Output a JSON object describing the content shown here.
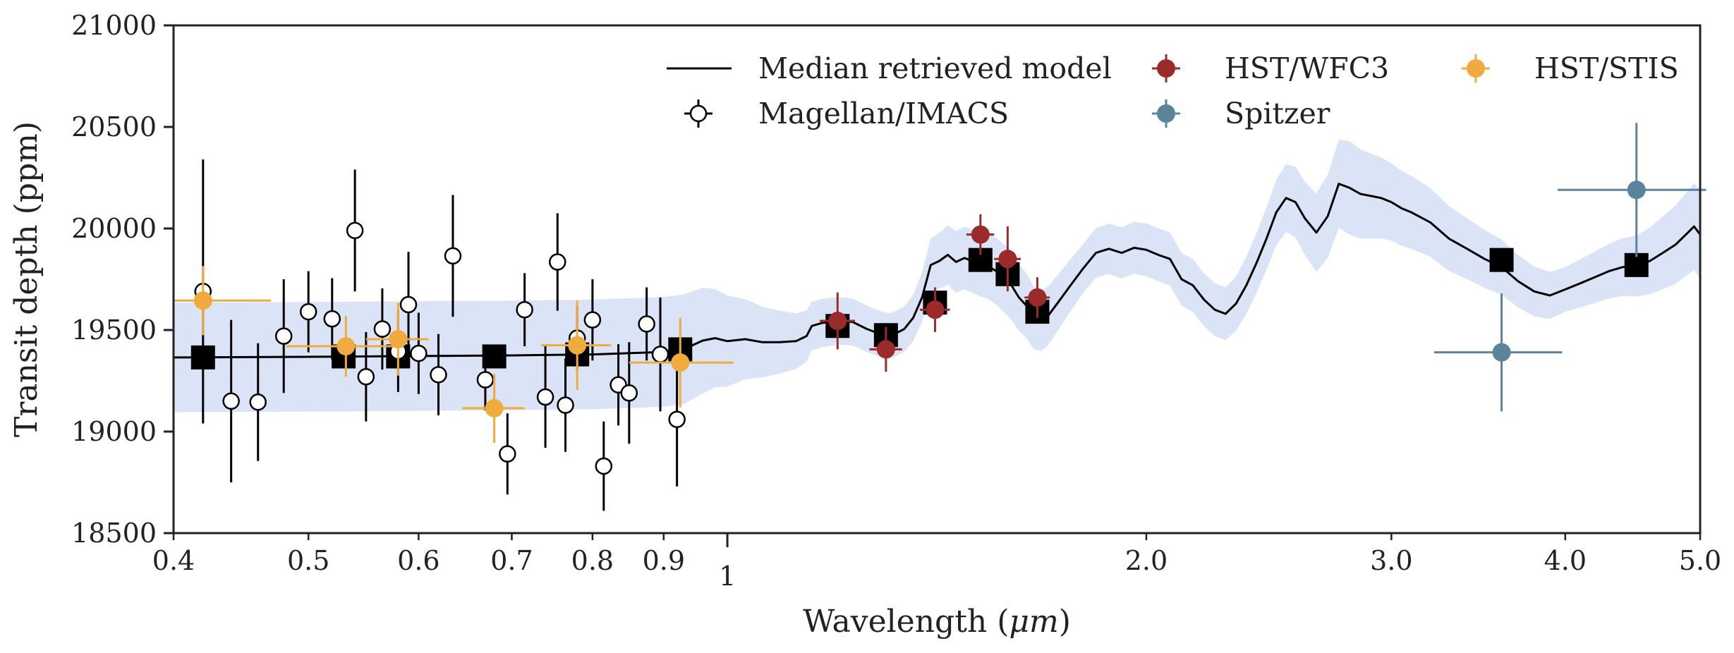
{
  "chart_data": {
    "type": "scatter",
    "title": "",
    "xlabel_prefix": "Wavelength (",
    "xlabel_unit": "μm",
    "xlabel_suffix": ")",
    "ylabel": "Transit depth (ppm)",
    "x_scale": "log",
    "xlim": [
      0.4,
      5.0
    ],
    "ylim": [
      18500,
      21000
    ],
    "x_ticks": [
      {
        "value": 0.4,
        "label": "0.4",
        "major": false
      },
      {
        "value": 0.5,
        "label": "0.5",
        "major": false
      },
      {
        "value": 0.6,
        "label": "0.6",
        "major": false
      },
      {
        "value": 0.7,
        "label": "0.7",
        "major": false
      },
      {
        "value": 0.8,
        "label": "0.8",
        "major": false
      },
      {
        "value": 0.9,
        "label": "0.9",
        "major": false
      },
      {
        "value": 1.0,
        "label": "1",
        "major": true
      },
      {
        "value": 2.0,
        "label": "2.0",
        "major": false
      },
      {
        "value": 3.0,
        "label": "3.0",
        "major": false
      },
      {
        "value": 4.0,
        "label": "4.0",
        "major": false
      },
      {
        "value": 5.0,
        "label": "5.0",
        "major": false
      }
    ],
    "y_ticks": [
      {
        "value": 18500,
        "label": "18500"
      },
      {
        "value": 19000,
        "label": "19000"
      },
      {
        "value": 19500,
        "label": "19500"
      },
      {
        "value": 20000,
        "label": "20000"
      },
      {
        "value": 20500,
        "label": "20500"
      },
      {
        "value": 21000,
        "label": "21000"
      }
    ],
    "grid": false,
    "legend_position": "top-right",
    "colors": {
      "model": "#000000",
      "band": "#dbe4f7",
      "imacs": "#000000",
      "wfc3": "#9b2a2a",
      "spitzer": "#5b8399",
      "stis": "#f0ab3e",
      "binned": "#000000"
    },
    "legend": [
      {
        "key": "model",
        "label": "Median retrieved model"
      },
      {
        "key": "imacs",
        "label": "Magellan/IMACS"
      },
      {
        "key": "wfc3",
        "label": "HST/WFC3"
      },
      {
        "key": "spitzer",
        "label": "Spitzer"
      },
      {
        "key": "stis",
        "label": "HST/STIS"
      }
    ],
    "model_line": [
      [
        0.4,
        19365
      ],
      [
        0.5,
        19368
      ],
      [
        0.6,
        19372
      ],
      [
        0.7,
        19375
      ],
      [
        0.8,
        19380
      ],
      [
        0.9,
        19392
      ],
      [
        0.93,
        19405
      ],
      [
        0.96,
        19448
      ],
      [
        0.98,
        19460
      ],
      [
        1.0,
        19445
      ],
      [
        1.03,
        19455
      ],
      [
        1.06,
        19440
      ],
      [
        1.09,
        19440
      ],
      [
        1.12,
        19445
      ],
      [
        1.14,
        19470
      ],
      [
        1.15,
        19520
      ],
      [
        1.17,
        19535
      ],
      [
        1.2,
        19545
      ],
      [
        1.23,
        19540
      ],
      [
        1.26,
        19505
      ],
      [
        1.29,
        19478
      ],
      [
        1.31,
        19470
      ],
      [
        1.34,
        19505
      ],
      [
        1.36,
        19560
      ],
      [
        1.38,
        19660
      ],
      [
        1.39,
        19740
      ],
      [
        1.4,
        19820
      ],
      [
        1.42,
        19840
      ],
      [
        1.44,
        19870
      ],
      [
        1.46,
        19835
      ],
      [
        1.48,
        19855
      ],
      [
        1.5,
        19840
      ],
      [
        1.52,
        19825
      ],
      [
        1.54,
        19815
      ],
      [
        1.56,
        19790
      ],
      [
        1.58,
        19755
      ],
      [
        1.6,
        19720
      ],
      [
        1.62,
        19660
      ],
      [
        1.64,
        19620
      ],
      [
        1.66,
        19560
      ],
      [
        1.68,
        19545
      ],
      [
        1.7,
        19570
      ],
      [
        1.73,
        19640
      ],
      [
        1.76,
        19710
      ],
      [
        1.8,
        19800
      ],
      [
        1.84,
        19880
      ],
      [
        1.88,
        19900
      ],
      [
        1.92,
        19880
      ],
      [
        1.96,
        19905
      ],
      [
        2.0,
        19895
      ],
      [
        2.04,
        19870
      ],
      [
        2.08,
        19850
      ],
      [
        2.12,
        19750
      ],
      [
        2.16,
        19720
      ],
      [
        2.2,
        19650
      ],
      [
        2.24,
        19600
      ],
      [
        2.28,
        19580
      ],
      [
        2.32,
        19630
      ],
      [
        2.36,
        19720
      ],
      [
        2.4,
        19830
      ],
      [
        2.44,
        19950
      ],
      [
        2.48,
        20080
      ],
      [
        2.52,
        20150
      ],
      [
        2.56,
        20130
      ],
      [
        2.6,
        20050
      ],
      [
        2.65,
        19980
      ],
      [
        2.7,
        20060
      ],
      [
        2.75,
        20220
      ],
      [
        2.8,
        20200
      ],
      [
        2.85,
        20170
      ],
      [
        2.9,
        20160
      ],
      [
        2.95,
        20150
      ],
      [
        3.0,
        20130
      ],
      [
        3.05,
        20100
      ],
      [
        3.1,
        20080
      ],
      [
        3.2,
        20030
      ],
      [
        3.3,
        19950
      ],
      [
        3.4,
        19900
      ],
      [
        3.5,
        19850
      ],
      [
        3.6,
        19810
      ],
      [
        3.7,
        19740
      ],
      [
        3.8,
        19690
      ],
      [
        3.9,
        19670
      ],
      [
        4.0,
        19700
      ],
      [
        4.1,
        19730
      ],
      [
        4.2,
        19760
      ],
      [
        4.3,
        19790
      ],
      [
        4.4,
        19810
      ],
      [
        4.5,
        19815
      ],
      [
        4.6,
        19840
      ],
      [
        4.7,
        19880
      ],
      [
        4.8,
        19920
      ],
      [
        4.9,
        19980
      ],
      [
        4.95,
        20010
      ],
      [
        5.0,
        19970
      ]
    ],
    "band_halfwidth": [
      [
        0.4,
        270
      ],
      [
        0.95,
        270
      ],
      [
        1.05,
        180
      ],
      [
        1.15,
        120
      ],
      [
        1.35,
        110
      ],
      [
        1.45,
        150
      ],
      [
        1.6,
        170
      ],
      [
        1.8,
        120
      ],
      [
        2.0,
        130
      ],
      [
        2.3,
        130
      ],
      [
        2.6,
        180
      ],
      [
        2.8,
        230
      ],
      [
        3.0,
        190
      ],
      [
        3.4,
        150
      ],
      [
        4.0,
        110
      ],
      [
        4.5,
        150
      ],
      [
        5.0,
        220
      ]
    ],
    "magellan_imacs": [
      {
        "x": 0.42,
        "y": 19690,
        "xerr": 0.006,
        "yerr": 650
      },
      {
        "x": 0.44,
        "y": 19150,
        "xerr": 0.006,
        "yerr": 400
      },
      {
        "x": 0.46,
        "y": 19145,
        "xerr": 0.006,
        "yerr": 290
      },
      {
        "x": 0.48,
        "y": 19470,
        "xerr": 0.006,
        "yerr": 280
      },
      {
        "x": 0.5,
        "y": 19590,
        "xerr": 0.006,
        "yerr": 200
      },
      {
        "x": 0.52,
        "y": 19555,
        "xerr": 0.006,
        "yerr": 200
      },
      {
        "x": 0.54,
        "y": 19990,
        "xerr": 0.006,
        "yerr": 300
      },
      {
        "x": 0.55,
        "y": 19270,
        "xerr": 0.006,
        "yerr": 220
      },
      {
        "x": 0.565,
        "y": 19505,
        "xerr": 0.006,
        "yerr": 200
      },
      {
        "x": 0.58,
        "y": 19395,
        "xerr": 0.006,
        "yerr": 200
      },
      {
        "x": 0.59,
        "y": 19625,
        "xerr": 0.006,
        "yerr": 260
      },
      {
        "x": 0.6,
        "y": 19385,
        "xerr": 0.006,
        "yerr": 200
      },
      {
        "x": 0.62,
        "y": 19280,
        "xerr": 0.006,
        "yerr": 200
      },
      {
        "x": 0.635,
        "y": 19865,
        "xerr": 0.006,
        "yerr": 300
      },
      {
        "x": 0.67,
        "y": 19255,
        "xerr": 0.006,
        "yerr": 150
      },
      {
        "x": 0.695,
        "y": 18890,
        "xerr": 0.006,
        "yerr": 200
      },
      {
        "x": 0.715,
        "y": 19600,
        "xerr": 0.006,
        "yerr": 180
      },
      {
        "x": 0.74,
        "y": 19170,
        "xerr": 0.006,
        "yerr": 250
      },
      {
        "x": 0.755,
        "y": 19835,
        "xerr": 0.006,
        "yerr": 240
      },
      {
        "x": 0.765,
        "y": 19130,
        "xerr": 0.006,
        "yerr": 230
      },
      {
        "x": 0.78,
        "y": 19460,
        "xerr": 0.006,
        "yerr": 160
      },
      {
        "x": 0.8,
        "y": 19550,
        "xerr": 0.006,
        "yerr": 200
      },
      {
        "x": 0.815,
        "y": 18830,
        "xerr": 0.006,
        "yerr": 220
      },
      {
        "x": 0.835,
        "y": 19230,
        "xerr": 0.006,
        "yerr": 200
      },
      {
        "x": 0.85,
        "y": 19190,
        "xerr": 0.006,
        "yerr": 250
      },
      {
        "x": 0.875,
        "y": 19530,
        "xerr": 0.006,
        "yerr": 180
      },
      {
        "x": 0.895,
        "y": 19380,
        "xerr": 0.006,
        "yerr": 280
      },
      {
        "x": 0.92,
        "y": 19060,
        "xerr": 0.006,
        "yerr": 330
      }
    ],
    "hst_stis": [
      {
        "x": 0.42,
        "y": 19645,
        "xerr_low": 0.02,
        "xerr_high": 0.05,
        "yerr": 170
      },
      {
        "x": 0.532,
        "y": 19420,
        "xerr_low": 0.05,
        "xerr_high": 0.05,
        "yerr": 150
      },
      {
        "x": 0.58,
        "y": 19455,
        "xerr_low": 0.03,
        "xerr_high": 0.03,
        "yerr": 180
      },
      {
        "x": 0.68,
        "y": 19115,
        "xerr_low": 0.035,
        "xerr_high": 0.035,
        "yerr": 170
      },
      {
        "x": 0.78,
        "y": 19425,
        "xerr_low": 0.045,
        "xerr_high": 0.045,
        "yerr": 220
      },
      {
        "x": 0.925,
        "y": 19340,
        "xerr_low": 0.075,
        "xerr_high": 0.085,
        "yerr": 220
      }
    ],
    "hst_wfc3": [
      {
        "x": 1.2,
        "y": 19545,
        "xerr": 0.035,
        "yerr": 140
      },
      {
        "x": 1.3,
        "y": 19405,
        "xerr": 0.035,
        "yerr": 110
      },
      {
        "x": 1.41,
        "y": 19600,
        "xerr": 0.035,
        "yerr": 110
      },
      {
        "x": 1.52,
        "y": 19970,
        "xerr": 0.035,
        "yerr": 100
      },
      {
        "x": 1.59,
        "y": 19850,
        "xerr": 0.035,
        "yerr": 160
      },
      {
        "x": 1.67,
        "y": 19660,
        "xerr": 0.035,
        "yerr": 100
      }
    ],
    "spitzer": [
      {
        "x": 3.6,
        "y": 19390,
        "xerr": 0.38,
        "yerr": 290
      },
      {
        "x": 4.5,
        "y": 20190,
        "xerr": 0.55,
        "yerr": 330
      }
    ],
    "binned_model": [
      {
        "x": 0.42,
        "y": 19365
      },
      {
        "x": 0.53,
        "y": 19370
      },
      {
        "x": 0.58,
        "y": 19370
      },
      {
        "x": 0.68,
        "y": 19370
      },
      {
        "x": 0.78,
        "y": 19380
      },
      {
        "x": 0.925,
        "y": 19405
      },
      {
        "x": 1.2,
        "y": 19520
      },
      {
        "x": 1.3,
        "y": 19475
      },
      {
        "x": 1.41,
        "y": 19635
      },
      {
        "x": 1.52,
        "y": 19845
      },
      {
        "x": 1.59,
        "y": 19775
      },
      {
        "x": 1.67,
        "y": 19590
      },
      {
        "x": 3.6,
        "y": 19845
      },
      {
        "x": 4.5,
        "y": 19820
      }
    ]
  }
}
